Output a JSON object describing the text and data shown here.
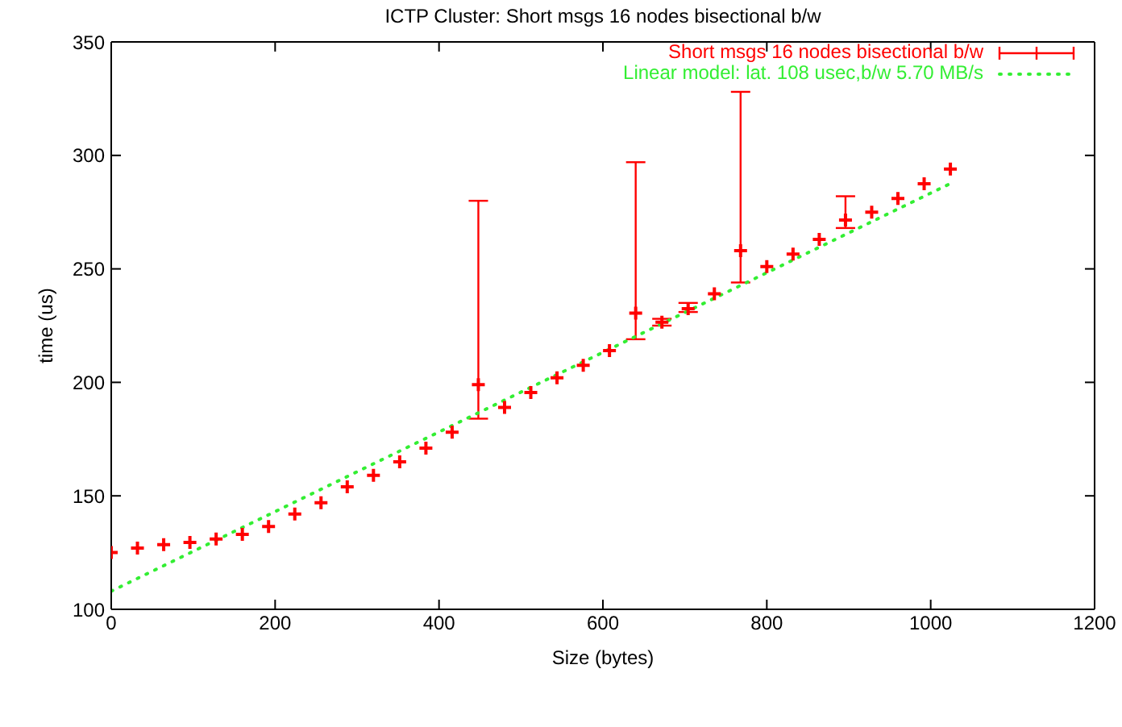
{
  "chart_data": {
    "type": "scatter",
    "title": "ICTP Cluster: Short msgs 16 nodes bisectional b/w",
    "xlabel": "Size (bytes)",
    "ylabel": "time (us)",
    "xlim": [
      0,
      1200
    ],
    "xticks": [
      0,
      200,
      400,
      600,
      800,
      1000,
      1200
    ],
    "ylim": [
      100,
      350
    ],
    "yticks": [
      100,
      150,
      200,
      250,
      300,
      350
    ],
    "legend": "top right",
    "marker": "cross",
    "series": [
      {
        "name": "Short msgs 16 nodes bisectional b/w",
        "color": "#ff0000",
        "x": [
          0,
          32,
          64,
          96,
          128,
          160,
          192,
          224,
          256,
          288,
          320,
          352,
          384,
          416,
          448,
          480,
          512,
          544,
          576,
          608,
          640,
          672,
          704,
          736,
          768,
          800,
          832,
          864,
          896,
          928,
          960,
          992,
          1024
        ],
        "values": [
          125,
          127,
          128.5,
          129.5,
          131,
          133,
          136.5,
          142,
          147,
          154,
          159,
          165,
          171,
          178,
          199,
          189,
          195.5,
          202,
          207.5,
          214,
          230.5,
          226.5,
          232.5,
          239,
          258,
          251,
          256.5,
          263,
          271.5,
          275,
          281,
          287.5,
          294
        ],
        "errors": [
          null,
          null,
          null,
          null,
          null,
          null,
          null,
          null,
          null,
          null,
          null,
          null,
          null,
          null,
          [
            184,
            280
          ],
          null,
          null,
          null,
          null,
          null,
          [
            219,
            297
          ],
          [
            225,
            228
          ],
          [
            231,
            235
          ],
          null,
          [
            244,
            328
          ],
          null,
          null,
          null,
          [
            268,
            282
          ],
          null,
          null,
          null,
          null
        ]
      },
      {
        "name": "Linear model: lat. 108 usec,b/w 5.70 MB/s",
        "color": "#33ee33",
        "type": "line",
        "line_style": "dotted",
        "marker": "none",
        "x": [
          0,
          1024
        ],
        "values": [
          108,
          287.6
        ]
      }
    ]
  }
}
